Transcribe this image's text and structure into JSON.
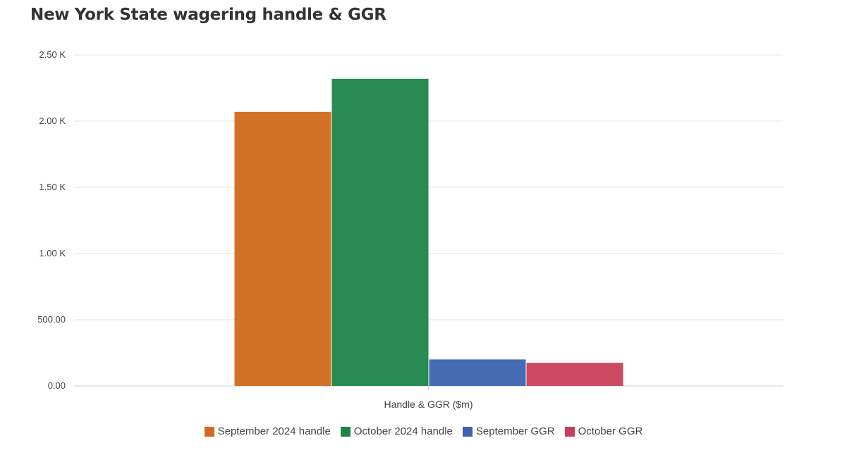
{
  "chart_data": {
    "type": "bar",
    "title": "New York State wagering handle & GGR",
    "categories": [
      "Handle & GGR ($m)"
    ],
    "series": [
      {
        "name": "September 2024 handle",
        "values": [
          2070
        ],
        "color": "#d2691e"
      },
      {
        "name": "October 2024 handle",
        "values": [
          2320
        ],
        "color": "#1e8449"
      },
      {
        "name": "September GGR",
        "values": [
          200
        ],
        "color": "#3a63b0"
      },
      {
        "name": "October GGR",
        "values": [
          175
        ],
        "color": "#c9405a"
      }
    ],
    "ylim": [
      0,
      2500
    ],
    "y_ticks": [
      "0.00",
      "500.00",
      "1.00 K",
      "1.50 K",
      "2.00 K",
      "2.50 K"
    ],
    "grid": true,
    "legend_position": "bottom"
  }
}
